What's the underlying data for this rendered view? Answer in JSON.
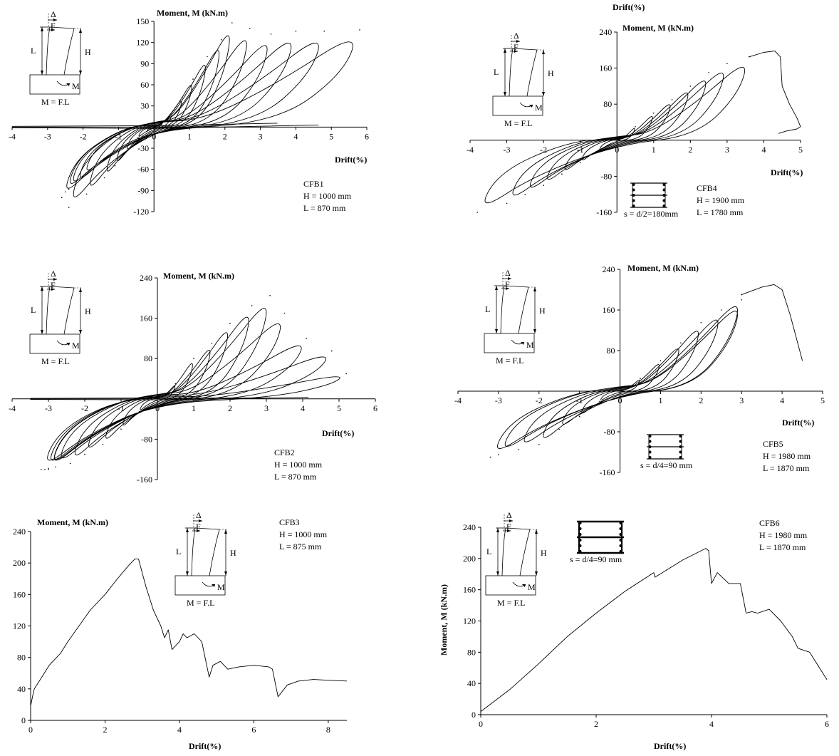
{
  "chart_data": [
    {
      "id": "CFB1",
      "type": "line",
      "loading": "cyclic",
      "specimen": "CFB1",
      "H": "H = 1000 mm",
      "L": "L =  870  mm",
      "ylabel": "Moment, M (kN.m)",
      "xlabel": "Drift(%)",
      "xlim": [
        -4,
        6
      ],
      "ylim": [
        -120,
        150
      ],
      "xticks": [
        -4,
        -3,
        -2,
        -1,
        0,
        1,
        2,
        3,
        4,
        5,
        6
      ],
      "yticks": [
        -120,
        -90,
        -60,
        -30,
        0,
        30,
        60,
        90,
        120,
        150
      ],
      "grid": false,
      "peaks": [
        [
          0.25,
          8,
          -0.2,
          -6
        ],
        [
          0.5,
          18,
          -0.45,
          -15
        ],
        [
          0.8,
          42,
          -0.8,
          -36
        ],
        [
          1.1,
          68,
          -1.1,
          -55
        ],
        [
          1.5,
          100,
          -1.4,
          -72
        ],
        [
          1.9,
          124,
          -1.9,
          -95
        ],
        [
          2.2,
          148,
          -2.4,
          -114
        ],
        [
          2.7,
          140,
          -2.6,
          -100
        ],
        [
          3.3,
          132,
          -2.5,
          -92
        ],
        [
          4.0,
          136,
          -2.4,
          -88
        ],
        [
          4.8,
          136,
          -2.2,
          -82
        ],
        [
          5.8,
          138,
          -2.0,
          -70
        ]
      ],
      "unload_drift": -4,
      "sketch": {
        "labels": [
          "Δ",
          "F",
          "L",
          "H",
          "M",
          "M = F.L"
        ]
      }
    },
    {
      "id": "CFB2",
      "type": "line",
      "loading": "cyclic",
      "specimen": "CFB2",
      "H": "H = 1000 mm",
      "L": "L =  870  mm",
      "ylabel": "Moment, M (kN.m)",
      "xlabel": "Drift(%)",
      "xlim": [
        -4,
        6
      ],
      "ylim": [
        -160,
        240
      ],
      "xticks": [
        -4,
        -3,
        -2,
        -1,
        0,
        1,
        2,
        3,
        4,
        5,
        6
      ],
      "yticks": [
        -160,
        -80,
        0,
        80,
        160,
        240
      ],
      "grid": false,
      "peaks": [
        [
          0.5,
          30,
          -0.5,
          -25
        ],
        [
          1.0,
          80,
          -1.0,
          -60
        ],
        [
          1.5,
          110,
          -1.5,
          -90
        ],
        [
          2.0,
          150,
          -2.0,
          -110
        ],
        [
          2.6,
          185,
          -2.4,
          -128
        ],
        [
          3.1,
          205,
          -2.8,
          -135
        ],
        [
          3.5,
          170,
          -3.0,
          -138
        ],
        [
          4.1,
          120,
          -3.0,
          -140
        ],
        [
          4.8,
          95,
          -3.1,
          -140
        ],
        [
          5.2,
          50,
          -3.2,
          -140
        ]
      ],
      "unload_drift": -3.5,
      "sketch": {
        "labels": [
          "Δ",
          "F",
          "L",
          "H",
          "M",
          "M = F.L"
        ]
      }
    },
    {
      "id": "CFB3",
      "type": "line",
      "loading": "monotonic",
      "specimen": "CFB3",
      "H": "H = 1000 mm",
      "L": "L =  875  mm",
      "ylabel": "Moment, M (kN.m)",
      "xlabel": "Drift(%)",
      "xlim": [
        0,
        8.5
      ],
      "ylim": [
        0,
        240
      ],
      "xticks": [
        0,
        2,
        4,
        6,
        8
      ],
      "yticks": [
        0,
        40,
        80,
        120,
        160,
        200,
        240
      ],
      "grid": false,
      "x": [
        0,
        0.05,
        0.1,
        0.3,
        0.5,
        0.8,
        1.0,
        1.3,
        1.6,
        2.0,
        2.3,
        2.6,
        2.8,
        2.9,
        3.1,
        3.3,
        3.5,
        3.6,
        3.7,
        3.8,
        4.0,
        4.1,
        4.2,
        4.4,
        4.6,
        4.8,
        4.9,
        5.1,
        5.3,
        5.6,
        6.0,
        6.4,
        6.5,
        6.65,
        6.9,
        7.2,
        7.6,
        8.0,
        8.5
      ],
      "y": [
        18,
        30,
        40,
        55,
        70,
        85,
        100,
        120,
        140,
        160,
        178,
        195,
        205,
        205,
        170,
        140,
        120,
        105,
        115,
        90,
        100,
        110,
        105,
        110,
        100,
        55,
        70,
        75,
        65,
        68,
        70,
        68,
        65,
        30,
        45,
        50,
        52,
        51,
        50
      ],
      "sketch": {
        "labels": [
          "Δ",
          "F",
          "L",
          "H",
          "M",
          "M = F.L"
        ]
      }
    },
    {
      "id": "CFB4",
      "type": "line",
      "loading": "cyclic",
      "specimen": "CFB4",
      "H": "H = 1900 mm",
      "L": "L = 1780 mm",
      "title": "Drift(%)",
      "ylabel": "Moment, M (kN.m)",
      "xlabel": "Drift(%)",
      "xlim": [
        -4,
        5
      ],
      "ylim": [
        -160,
        240
      ],
      "xticks": [
        -4,
        -3,
        -2,
        -1,
        0,
        1,
        2,
        3,
        4,
        5
      ],
      "yticks": [
        -160,
        -80,
        0,
        80,
        160,
        240
      ],
      "grid": false,
      "peaks": [
        [
          0.5,
          30,
          -0.5,
          -25
        ],
        [
          1.0,
          60,
          -1.0,
          -50
        ],
        [
          1.5,
          90,
          -1.5,
          -75
        ],
        [
          2.0,
          120,
          -2.0,
          -100
        ],
        [
          2.5,
          150,
          -2.5,
          -120
        ],
        [
          3.0,
          170,
          -3.0,
          -140
        ],
        [
          3.6,
          185,
          -3.8,
          -160
        ]
      ],
      "post_peak": {
        "x": [
          3.6,
          4.0,
          4.3,
          4.45,
          4.5,
          4.7,
          4.9,
          5.0,
          4.9,
          4.6,
          4.4
        ],
        "y": [
          185,
          195,
          198,
          185,
          120,
          80,
          50,
          30,
          25,
          20,
          15
        ]
      },
      "tie_label": "s = d/2=180mm",
      "sketch": {
        "labels": [
          "Δ",
          "F",
          "L",
          "H",
          "M",
          "M = F.L"
        ]
      }
    },
    {
      "id": "CFB5",
      "type": "line",
      "loading": "cyclic",
      "specimen": "CFB5",
      "H": "H = 1980 mm",
      "L": "L = 1870 mm",
      "ylabel": "Moment, M (kN.m)",
      "xlabel": "Drift(%)",
      "xlim": [
        -4,
        5
      ],
      "ylim": [
        -160,
        240
      ],
      "xticks": [
        -4,
        -3,
        -2,
        -1,
        0,
        1,
        2,
        3,
        4,
        5
      ],
      "yticks": [
        -160,
        -80,
        0,
        80,
        160,
        240
      ],
      "grid": false,
      "peaks": [
        [
          0.5,
          25,
          -0.5,
          -20
        ],
        [
          1.0,
          60,
          -1.0,
          -50
        ],
        [
          1.5,
          95,
          -1.5,
          -75
        ],
        [
          2.0,
          135,
          -2.0,
          -105
        ],
        [
          2.5,
          160,
          -2.5,
          -115
        ],
        [
          3.0,
          190,
          -3.0,
          -125
        ],
        [
          3.0,
          180,
          -3.2,
          -130
        ]
      ],
      "post_peak": {
        "x": [
          3.0,
          3.5,
          3.8,
          4.0,
          4.2,
          4.4,
          4.5
        ],
        "y": [
          190,
          205,
          210,
          200,
          150,
          90,
          60
        ]
      },
      "tie_label": "s = d/4=90 mm",
      "sketch": {
        "labels": [
          "Δ",
          "F",
          "L",
          "H",
          "M",
          "M = F.L"
        ]
      }
    },
    {
      "id": "CFB6",
      "type": "line",
      "loading": "monotonic",
      "specimen": "CFB6",
      "H": "H = 1980 mm",
      "L": "L = 1870  mm",
      "ylabel": "Moment, M (kN.m)",
      "xlabel": "Drift(%)",
      "xlim": [
        0,
        6
      ],
      "ylim": [
        0,
        240
      ],
      "xticks": [
        0,
        2,
        4,
        6
      ],
      "yticks": [
        0,
        40,
        80,
        120,
        160,
        200,
        240
      ],
      "grid": false,
      "x": [
        0,
        0.5,
        1.0,
        1.5,
        2.0,
        2.5,
        3.0,
        3.02,
        3.5,
        3.9,
        3.95,
        4.0,
        4.1,
        4.3,
        4.5,
        4.6,
        4.7,
        4.8,
        5.0,
        5.2,
        5.4,
        5.5,
        5.7,
        6.0
      ],
      "y": [
        4,
        32,
        65,
        100,
        130,
        158,
        182,
        176,
        198,
        213,
        210,
        168,
        182,
        168,
        168,
        130,
        132,
        130,
        135,
        120,
        100,
        85,
        80,
        45
      ],
      "tie_label": "s = d/4=90 mm",
      "sketch": {
        "labels": [
          "Δ",
          "F",
          "L",
          "H",
          "M",
          "M = F.L"
        ]
      }
    }
  ]
}
